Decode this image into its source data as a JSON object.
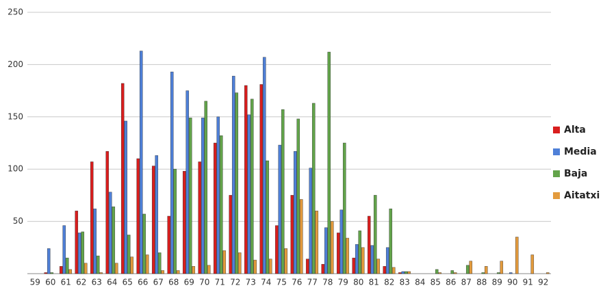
{
  "chart_data": {
    "type": "bar",
    "categories": [
      "59",
      "60",
      "61",
      "62",
      "63",
      "64",
      "65",
      "66",
      "67",
      "68",
      "69",
      "70",
      "71",
      "72",
      "73",
      "74",
      "75",
      "76",
      "77",
      "78",
      "79",
      "80",
      "81",
      "82",
      "83",
      "84",
      "85",
      "86",
      "87",
      "88",
      "89",
      "90",
      "91",
      "92"
    ],
    "series": [
      {
        "name": "Alta",
        "color": "#d91e1e",
        "values": [
          0,
          1,
          7,
          60,
          107,
          117,
          182,
          110,
          103,
          55,
          98,
          107,
          125,
          75,
          180,
          181,
          46,
          75,
          14,
          9,
          39,
          15,
          55,
          7,
          1,
          0,
          0,
          0,
          0,
          0,
          0,
          0,
          0,
          0
        ]
      },
      {
        "name": "Media",
        "color": "#4f80d8",
        "values": [
          0,
          24,
          46,
          39,
          62,
          78,
          146,
          213,
          113,
          193,
          175,
          149,
          150,
          189,
          152,
          207,
          123,
          117,
          101,
          44,
          61,
          28,
          27,
          25,
          2,
          0,
          0,
          0,
          0,
          0,
          0,
          1,
          0,
          0
        ]
      },
      {
        "name": "Baja",
        "color": "#63a44b",
        "values": [
          0,
          1,
          15,
          40,
          17,
          64,
          37,
          57,
          20,
          100,
          149,
          165,
          132,
          173,
          167,
          108,
          157,
          148,
          163,
          212,
          125,
          41,
          75,
          62,
          2,
          0,
          4,
          3,
          8,
          1,
          1,
          0,
          0,
          0
        ]
      },
      {
        "name": "Aitatxi",
        "color": "#e39b3d",
        "values": [
          0,
          0,
          4,
          10,
          1,
          10,
          16,
          18,
          3,
          3,
          7,
          8,
          22,
          20,
          13,
          14,
          24,
          71,
          60,
          50,
          34,
          25,
          14,
          6,
          2,
          0,
          1,
          1,
          12,
          7,
          12,
          35,
          18,
          1
        ]
      }
    ],
    "ylim": [
      0,
      250
    ],
    "yticks": [
      50,
      100,
      150,
      200,
      250
    ],
    "grid": true,
    "legend": "right"
  }
}
